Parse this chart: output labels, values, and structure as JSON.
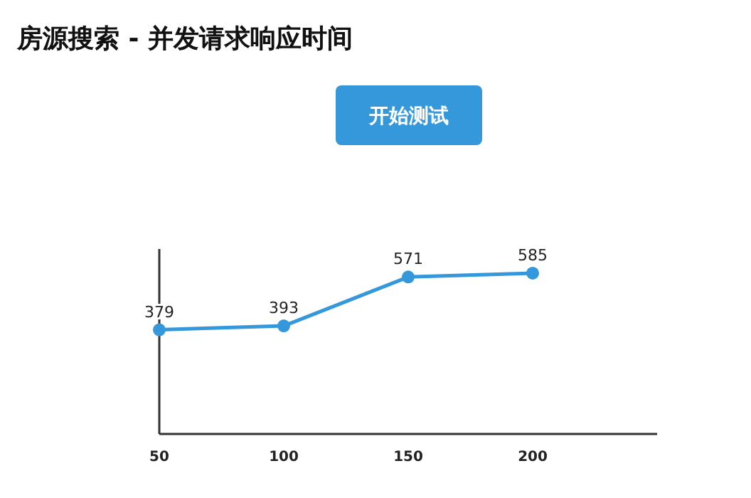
{
  "chart_data": {
    "type": "line",
    "title": "房源搜索 - 并发请求响应时间",
    "annotations": [
      "开始测试"
    ],
    "x": [
      50,
      100,
      150,
      200
    ],
    "xlim": [
      50,
      250
    ],
    "xticks": [
      50,
      100,
      150,
      200
    ],
    "series": [
      {
        "color": "#3498db",
        "values": [
          379,
          393,
          571,
          585
        ]
      }
    ],
    "data_labels": true,
    "marker": "circle",
    "grid": false
  }
}
